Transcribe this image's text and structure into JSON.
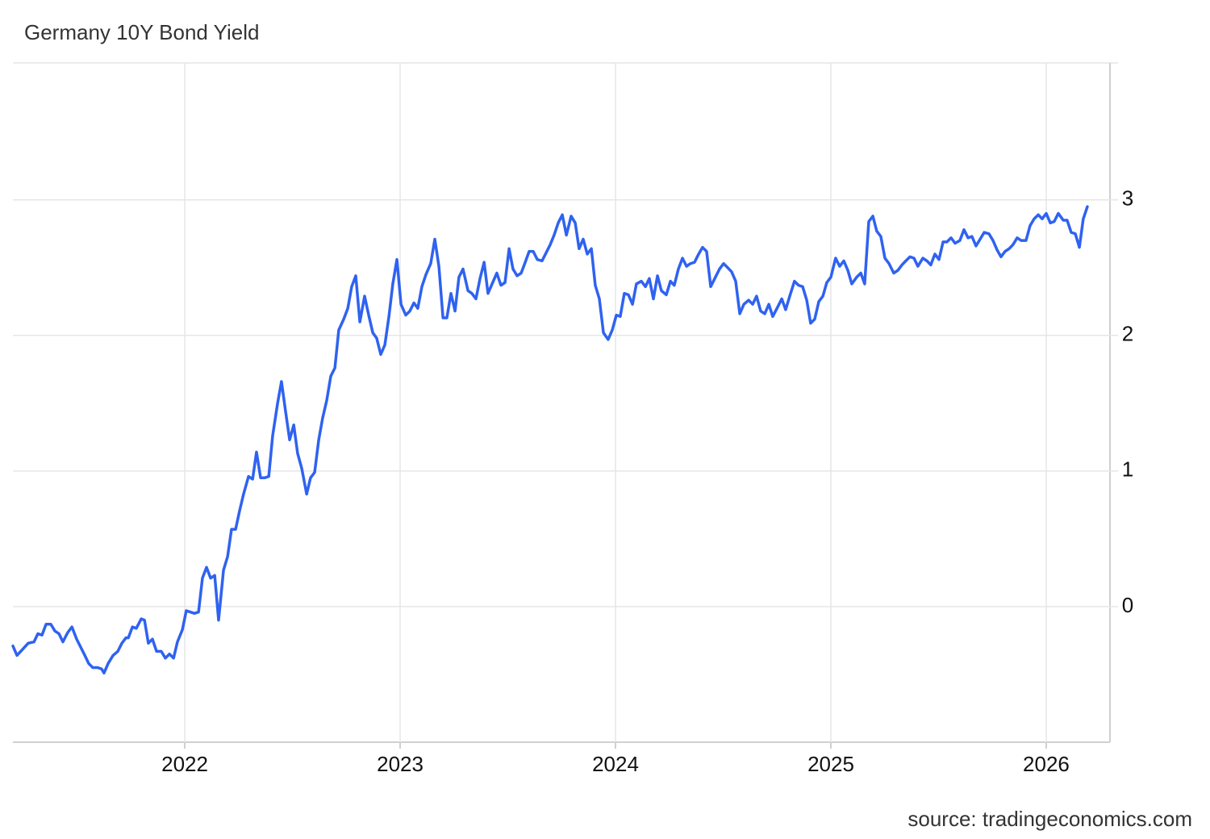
{
  "chart_data": {
    "type": "line",
    "title": "Germany 10Y Bond Yield",
    "source": "source: tradingeconomics.com",
    "color": "#2f62f0",
    "grid": true,
    "xlim": [
      2021.202,
      2026.296
    ],
    "xticks": [
      2022,
      2023,
      2024,
      2025,
      2026
    ],
    "ylim": [
      -1,
      4.01
    ],
    "yticks": [
      0,
      1,
      2,
      3
    ],
    "x": [
      2021.202,
      2021.221,
      2021.273,
      2021.3,
      2021.318,
      2021.337,
      2021.356,
      2021.378,
      2021.397,
      2021.416,
      2021.434,
      2021.457,
      2021.476,
      2021.498,
      2021.517,
      2021.536,
      2021.554,
      2021.573,
      2021.596,
      2021.614,
      2021.625,
      2021.644,
      2021.667,
      2021.689,
      2021.708,
      2021.727,
      2021.738,
      2021.757,
      2021.775,
      2021.798,
      2021.813,
      2021.831,
      2021.85,
      2021.869,
      2021.891,
      2021.91,
      2021.929,
      2021.948,
      2021.966,
      2021.989,
      2022.007,
      2022.026,
      2022.045,
      2022.064,
      2022.082,
      2022.101,
      2022.12,
      2022.139,
      2022.157,
      2022.18,
      2022.199,
      2022.217,
      2022.236,
      2022.255,
      2022.273,
      2022.296,
      2022.315,
      2022.333,
      2022.352,
      2022.371,
      2022.39,
      2022.408,
      2022.431,
      2022.449,
      2022.468,
      2022.487,
      2022.506,
      2022.524,
      2022.543,
      2022.566,
      2022.584,
      2022.603,
      2022.622,
      2022.64,
      2022.659,
      2022.678,
      2022.697,
      2022.715,
      2022.738,
      2022.757,
      2022.775,
      2022.794,
      2022.813,
      2022.835,
      2022.854,
      2022.873,
      2022.891,
      2022.91,
      2022.929,
      2022.948,
      2022.966,
      2022.985,
      2023.004,
      2023.026,
      2023.045,
      2023.064,
      2023.082,
      2023.101,
      2023.12,
      2023.142,
      2023.161,
      2023.18,
      2023.199,
      2023.217,
      2023.236,
      2023.255,
      2023.273,
      2023.292,
      2023.315,
      2023.333,
      2023.352,
      2023.371,
      2023.39,
      2023.408,
      2023.427,
      2023.449,
      2023.468,
      2023.487,
      2023.506,
      2023.524,
      2023.543,
      2023.562,
      2023.581,
      2023.599,
      2023.618,
      2023.637,
      2023.659,
      2023.678,
      2023.697,
      2023.715,
      2023.734,
      2023.753,
      2023.772,
      2023.794,
      2023.813,
      2023.831,
      2023.85,
      2023.869,
      2023.888,
      2023.906,
      2023.925,
      2023.944,
      2023.966,
      2023.985,
      2024.004,
      2024.022,
      2024.041,
      2024.06,
      2024.079,
      2024.097,
      2024.12,
      2024.139,
      2024.157,
      2024.176,
      2024.195,
      2024.213,
      2024.236,
      2024.255,
      2024.273,
      2024.292,
      2024.311,
      2024.33,
      2024.348,
      2024.367,
      2024.386,
      2024.404,
      2024.423,
      2024.442,
      2024.464,
      2024.483,
      2024.502,
      2024.521,
      2024.539,
      2024.558,
      2024.577,
      2024.596,
      2024.618,
      2024.637,
      2024.655,
      2024.674,
      2024.693,
      2024.712,
      2024.73,
      2024.753,
      2024.772,
      2024.79,
      2024.809,
      2024.831,
      2024.85,
      2024.869,
      2024.888,
      2024.906,
      2024.925,
      2024.944,
      2024.963,
      2024.981,
      2025.0,
      2025.022,
      2025.041,
      2025.06,
      2025.079,
      2025.097,
      2025.12,
      2025.139,
      2025.157,
      2025.176,
      2025.195,
      2025.213,
      2025.232,
      2025.251,
      2025.27,
      2025.292,
      2025.311,
      2025.33,
      2025.348,
      2025.367,
      2025.386,
      2025.404,
      2025.427,
      2025.446,
      2025.464,
      2025.483,
      2025.502,
      2025.521,
      2025.539,
      2025.558,
      2025.577,
      2025.599,
      2025.618,
      2025.637,
      2025.655,
      2025.674,
      2025.693,
      2025.712,
      2025.734,
      2025.753,
      2025.772,
      2025.79,
      2025.809,
      2025.828,
      2025.846,
      2025.865,
      2025.884,
      2025.906,
      2025.925,
      2025.944,
      2025.963,
      2025.981,
      2026.0,
      2026.019,
      2026.037,
      2026.056,
      2026.079,
      2026.097,
      2026.116,
      2026.135,
      2026.154,
      2026.172,
      2026.191
    ],
    "values": [
      -0.29,
      -0.36,
      -0.27,
      -0.26,
      -0.2,
      -0.21,
      -0.13,
      -0.13,
      -0.18,
      -0.2,
      -0.26,
      -0.19,
      -0.15,
      -0.24,
      -0.3,
      -0.36,
      -0.42,
      -0.45,
      -0.45,
      -0.46,
      -0.49,
      -0.42,
      -0.36,
      -0.33,
      -0.27,
      -0.23,
      -0.23,
      -0.15,
      -0.16,
      -0.09,
      -0.1,
      -0.27,
      -0.24,
      -0.33,
      -0.33,
      -0.38,
      -0.35,
      -0.38,
      -0.26,
      -0.17,
      -0.03,
      -0.04,
      -0.05,
      -0.04,
      0.21,
      0.29,
      0.21,
      0.23,
      -0.1,
      0.27,
      0.37,
      0.57,
      0.57,
      0.71,
      0.83,
      0.96,
      0.94,
      1.14,
      0.95,
      0.95,
      0.96,
      1.26,
      1.5,
      1.66,
      1.44,
      1.23,
      1.34,
      1.13,
      1.02,
      0.83,
      0.95,
      0.99,
      1.23,
      1.39,
      1.52,
      1.7,
      1.76,
      2.04,
      2.12,
      2.2,
      2.36,
      2.44,
      2.1,
      2.29,
      2.15,
      2.02,
      1.98,
      1.86,
      1.93,
      2.14,
      2.38,
      2.56,
      2.23,
      2.15,
      2.18,
      2.24,
      2.2,
      2.36,
      2.45,
      2.53,
      2.71,
      2.51,
      2.13,
      2.13,
      2.31,
      2.18,
      2.43,
      2.49,
      2.33,
      2.31,
      2.27,
      2.42,
      2.54,
      2.31,
      2.38,
      2.46,
      2.37,
      2.39,
      2.64,
      2.49,
      2.44,
      2.46,
      2.54,
      2.62,
      2.62,
      2.56,
      2.55,
      2.61,
      2.67,
      2.74,
      2.83,
      2.89,
      2.74,
      2.88,
      2.83,
      2.64,
      2.71,
      2.6,
      2.64,
      2.37,
      2.27,
      2.02,
      1.97,
      2.04,
      2.15,
      2.14,
      2.31,
      2.3,
      2.23,
      2.38,
      2.4,
      2.36,
      2.42,
      2.27,
      2.44,
      2.33,
      2.3,
      2.4,
      2.37,
      2.49,
      2.57,
      2.51,
      2.53,
      2.54,
      2.6,
      2.65,
      2.62,
      2.36,
      2.43,
      2.49,
      2.53,
      2.5,
      2.47,
      2.4,
      2.16,
      2.23,
      2.26,
      2.23,
      2.29,
      2.18,
      2.16,
      2.23,
      2.14,
      2.21,
      2.27,
      2.19,
      2.29,
      2.4,
      2.37,
      2.36,
      2.26,
      2.09,
      2.12,
      2.25,
      2.29,
      2.39,
      2.43,
      2.57,
      2.51,
      2.55,
      2.48,
      2.38,
      2.43,
      2.46,
      2.38,
      2.84,
      2.88,
      2.77,
      2.73,
      2.57,
      2.53,
      2.46,
      2.48,
      2.52,
      2.55,
      2.58,
      2.57,
      2.51,
      2.57,
      2.55,
      2.52,
      2.6,
      2.56,
      2.69,
      2.69,
      2.72,
      2.68,
      2.7,
      2.78,
      2.72,
      2.73,
      2.66,
      2.71,
      2.76,
      2.75,
      2.7,
      2.63,
      2.58,
      2.62,
      2.64,
      2.67,
      2.72,
      2.7,
      2.7,
      2.81,
      2.86,
      2.89,
      2.86,
      2.9,
      2.83,
      2.84,
      2.9,
      2.85,
      2.85,
      2.76,
      2.75,
      2.65,
      2.86,
      2.95
    ]
  }
}
